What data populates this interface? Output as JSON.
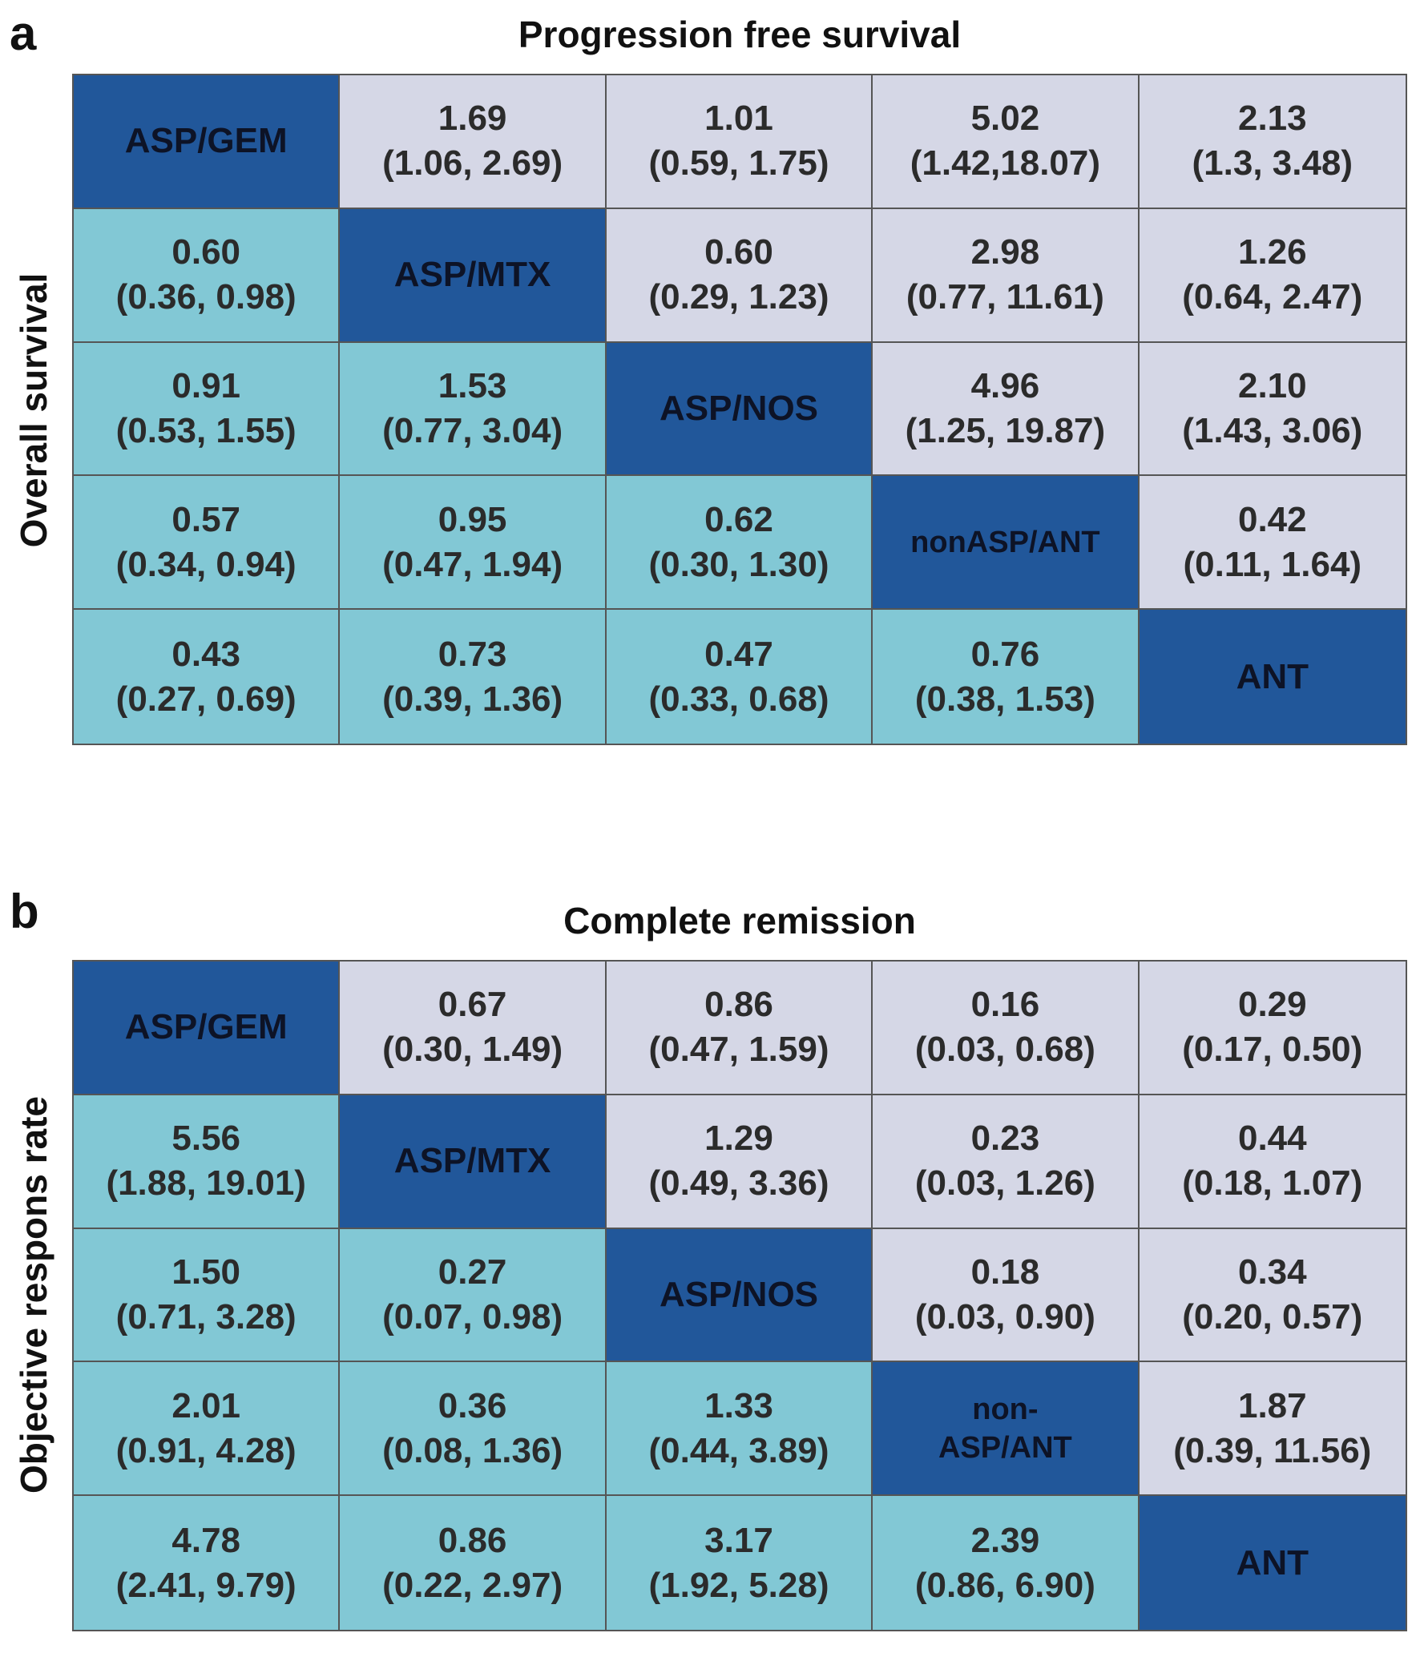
{
  "chart_data": [
    {
      "type": "table",
      "panel": "a",
      "title": "Progression free survival",
      "ylabel": "Overall survival",
      "treatments": [
        "ASP/GEM",
        "ASP/MTX",
        "ASP/NOS",
        "nonASP/ANT",
        "ANT"
      ],
      "diagonal_labels": [
        "ASP/GEM",
        "ASP/MTX",
        "ASP/NOS",
        "nonASP/ANT",
        "ANT"
      ],
      "rows": [
        [
          null,
          {
            "est": "1.69",
            "ci": "(1.06, 2.69)"
          },
          {
            "est": "1.01",
            "ci": "(0.59, 1.75)"
          },
          {
            "est": "5.02",
            "ci": "(1.42,18.07)"
          },
          {
            "est": "2.13",
            "ci": "(1.3, 3.48)"
          }
        ],
        [
          {
            "est": "0.60",
            "ci": "(0.36, 0.98)"
          },
          null,
          {
            "est": "0.60",
            "ci": "(0.29, 1.23)"
          },
          {
            "est": "2.98",
            "ci": "(0.77, 11.61)"
          },
          {
            "est": "1.26",
            "ci": "(0.64, 2.47)"
          }
        ],
        [
          {
            "est": "0.91",
            "ci": "(0.53, 1.55)"
          },
          {
            "est": "1.53",
            "ci": "(0.77, 3.04)"
          },
          null,
          {
            "est": "4.96",
            "ci": "(1.25, 19.87)"
          },
          {
            "est": "2.10",
            "ci": "(1.43, 3.06)"
          }
        ],
        [
          {
            "est": "0.57",
            "ci": "(0.34, 0.94)"
          },
          {
            "est": "0.95",
            "ci": "(0.47, 1.94)"
          },
          {
            "est": "0.62",
            "ci": "(0.30, 1.30)"
          },
          null,
          {
            "est": "0.42",
            "ci": "(0.11, 1.64)"
          }
        ],
        [
          {
            "est": "0.43",
            "ci": "(0.27, 0.69)"
          },
          {
            "est": "0.73",
            "ci": "(0.39, 1.36)"
          },
          {
            "est": "0.47",
            "ci": "(0.33, 0.68)"
          },
          {
            "est": "0.76",
            "ci": "(0.38, 1.53)"
          },
          null
        ]
      ]
    },
    {
      "type": "table",
      "panel": "b",
      "title": "Complete remission",
      "ylabel": "Objective respons rate",
      "treatments": [
        "ASP/GEM",
        "ASP/MTX",
        "ASP/NOS",
        "non-ASP/ANT",
        "ANT"
      ],
      "diagonal_labels": [
        "ASP/GEM",
        "ASP/MTX",
        "ASP/NOS",
        "non-\nASP/ANT",
        "ANT"
      ],
      "rows": [
        [
          null,
          {
            "est": "0.67",
            "ci": "(0.30, 1.49)"
          },
          {
            "est": "0.86",
            "ci": "(0.47, 1.59)"
          },
          {
            "est": "0.16",
            "ci": "(0.03, 0.68)"
          },
          {
            "est": "0.29",
            "ci": "(0.17, 0.50)"
          }
        ],
        [
          {
            "est": "5.56",
            "ci": "(1.88, 19.01)"
          },
          null,
          {
            "est": "1.29",
            "ci": "(0.49, 3.36)"
          },
          {
            "est": "0.23",
            "ci": "(0.03, 1.26)"
          },
          {
            "est": "0.44",
            "ci": "(0.18, 1.07)"
          }
        ],
        [
          {
            "est": "1.50",
            "ci": "(0.71, 3.28)"
          },
          {
            "est": "0.27",
            "ci": "(0.07, 0.98)"
          },
          null,
          {
            "est": "0.18",
            "ci": "(0.03, 0.90)"
          },
          {
            "est": "0.34",
            "ci": "(0.20, 0.57)"
          }
        ],
        [
          {
            "est": "2.01",
            "ci": "(0.91, 4.28)"
          },
          {
            "est": "0.36",
            "ci": "(0.08, 1.36)"
          },
          {
            "est": "1.33",
            "ci": "(0.44, 3.89)"
          },
          null,
          {
            "est": "1.87",
            "ci": "(0.39, 11.56)"
          }
        ],
        [
          {
            "est": "4.78",
            "ci": "(2.41, 9.79)"
          },
          {
            "est": "0.86",
            "ci": "(0.22, 2.97)"
          },
          {
            "est": "3.17",
            "ci": "(1.92, 5.28)"
          },
          {
            "est": "2.39",
            "ci": "(0.86, 6.90)"
          },
          null
        ]
      ]
    }
  ],
  "colors": {
    "diagonal": "#21579a",
    "upper_triangle": "#d5d7e6",
    "lower_triangle": "#82c8d5",
    "border": "#555555"
  }
}
